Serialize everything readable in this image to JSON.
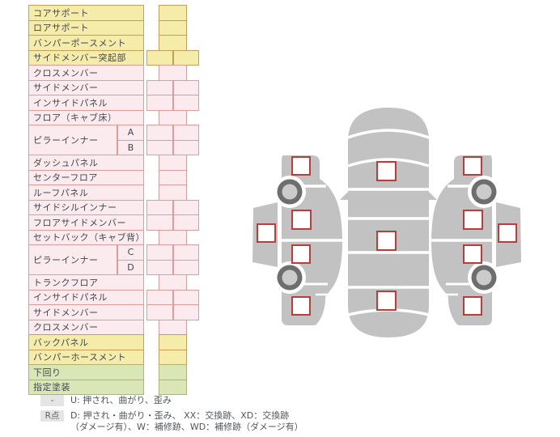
{
  "table": {
    "rows": [
      {
        "label": "コアサポート",
        "color": "yellow",
        "cells": 1
      },
      {
        "label": "ロアサポート",
        "color": "yellow",
        "cells": 1
      },
      {
        "label": "バンパーポースメント",
        "color": "yellow",
        "cells": 1
      },
      {
        "label": "サイドメンバー突起部",
        "color": "yellow",
        "cells": 2
      },
      {
        "label": "クロスメンバー",
        "color": "pink",
        "cells": 1
      },
      {
        "label": "サイドメンバー",
        "color": "pink",
        "cells": 2
      },
      {
        "label": "インサイドパネル",
        "color": "pink",
        "cells": 2
      },
      {
        "label": "フロア（キャブ床）",
        "color": "pink",
        "cells": 1
      },
      {
        "label": "ピラーインナー",
        "color": "pink",
        "cells": 2,
        "sub": "A",
        "group": "start"
      },
      {
        "label": "",
        "color": "pink",
        "cells": 2,
        "sub": "B",
        "group": "end"
      },
      {
        "label": "ダッシュパネル",
        "color": "pink",
        "cells": 1
      },
      {
        "label": "センターフロア",
        "color": "pink",
        "cells": 1
      },
      {
        "label": "ルーフパネル",
        "color": "pink",
        "cells": 1
      },
      {
        "label": "サイドシルインナー",
        "color": "pink",
        "cells": 2
      },
      {
        "label": "フロアサイドメンバー",
        "color": "pink",
        "cells": 2
      },
      {
        "label": "セットバック（キャブ背）",
        "color": "pink",
        "cells": 1
      },
      {
        "label": "ピラーインナー",
        "color": "pink",
        "cells": 2,
        "sub": "C",
        "group": "start"
      },
      {
        "label": "",
        "color": "pink",
        "cells": 2,
        "sub": "D",
        "group": "end"
      },
      {
        "label": "トランクフロア",
        "color": "pink",
        "cells": 1
      },
      {
        "label": "インサイドパネル",
        "color": "pink",
        "cells": 2
      },
      {
        "label": "サイドメンバー",
        "color": "pink",
        "cells": 2
      },
      {
        "label": "クロスメンバー",
        "color": "pink",
        "cells": 1
      },
      {
        "label": "バックパネル",
        "color": "yellow",
        "cells": 1
      },
      {
        "label": "バンパーホースメント",
        "color": "yellow",
        "cells": 1
      },
      {
        "label": "下回り",
        "color": "green",
        "cells": 1
      },
      {
        "label": "指定塗装",
        "color": "green",
        "cells": 1
      }
    ]
  },
  "legend": {
    "row1": {
      "badge": "-",
      "text": "U: 押され、曲がり、歪み"
    },
    "row2": {
      "badge": "R点",
      "line1": "D: 押され・曲がり・歪み、 XX：交換跡、XD：交換跡",
      "line2": "（ダメージ有）、W：補修跡、WD：補修跡（ダメージ有）"
    }
  },
  "diagram": {
    "marker_count": 13,
    "left_view_markers": 5,
    "top_view_markers": 3,
    "right_view_markers": 5
  },
  "colors": {
    "yellow_fill": "#F6ECA9",
    "yellow_border": "#C59F58",
    "pink_fill": "#FBEBEE",
    "pink_border": "#DA9D9A",
    "green_fill": "#DAE6B5",
    "green_border": "#AEB373",
    "car_body": "#C2C2C2",
    "wheel_ring": "#6E6E6E",
    "wheel_hub": "#CBCBCB",
    "marker_border": "#C03A3A",
    "marker_fill": "#FFFFFF",
    "badge_background": "#E5E5E5"
  }
}
